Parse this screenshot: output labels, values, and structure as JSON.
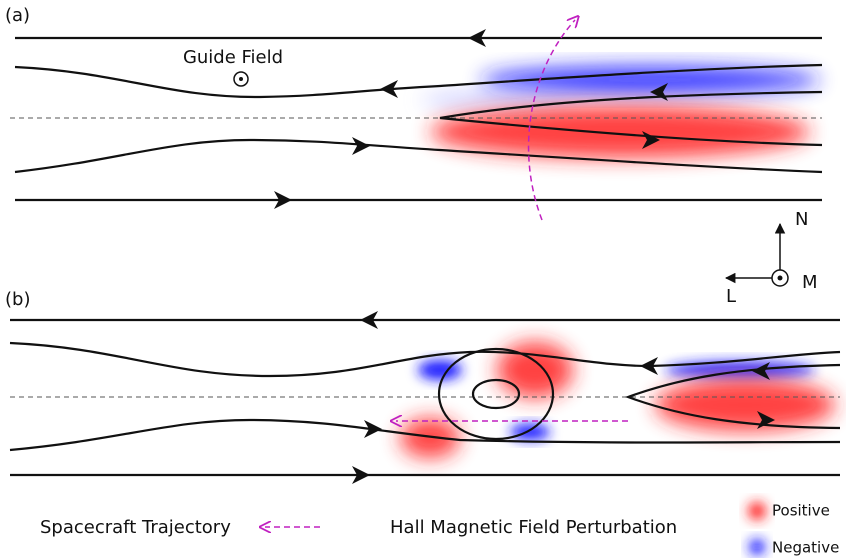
{
  "panel_a": {
    "label": "(a)",
    "guide_field": "Guide Field"
  },
  "axes": {
    "n": "N",
    "l": "L",
    "m": "M"
  },
  "panel_b": {
    "label": "(b)"
  },
  "legend": {
    "trajectory": "Spacecraft Trajectory",
    "hall": "Hall Magnetic Field Perturbation",
    "positive": "Positive",
    "negative": "Negative"
  }
}
